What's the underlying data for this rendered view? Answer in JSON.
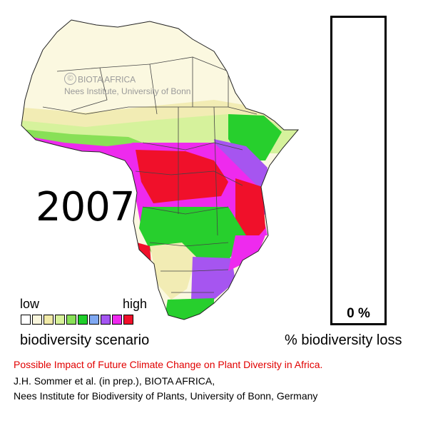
{
  "year": "2007",
  "watermark": {
    "symbol": "©",
    "line1": "BIOTA AFRICA",
    "line2": "Nees Institute, University of Bonn"
  },
  "legend": {
    "low_label": "low",
    "high_label": "high",
    "colors": [
      "#ffffff",
      "#f9f6dd",
      "#f2eba8",
      "#d8f29a",
      "#88e057",
      "#1fcf2a",
      "#7fa8f2",
      "#a455f2",
      "#ee28ee",
      "#f0102a"
    ],
    "caption": "biodiversity scenario"
  },
  "gauge": {
    "loss_percent": 0,
    "value_label": "0 %",
    "caption": "% biodiversity loss"
  },
  "headline": "Possible Impact of Future Climate Change on Plant Diversity in Africa.",
  "credits": [
    "J.H. Sommer et al. (in prep.), BIOTA AFRICA,",
    "Nees Institute for Biodiversity of Plants, University of Bonn, Germany"
  ],
  "map_colors": {
    "desert": "#fbf8e0",
    "sahel": "#f2ecb4",
    "lightgreen": "#d6f29c",
    "green": "#27cf2d",
    "purple": "#a655f0",
    "magenta": "#ee2aee",
    "red": "#f0102a",
    "border": "#222222"
  }
}
